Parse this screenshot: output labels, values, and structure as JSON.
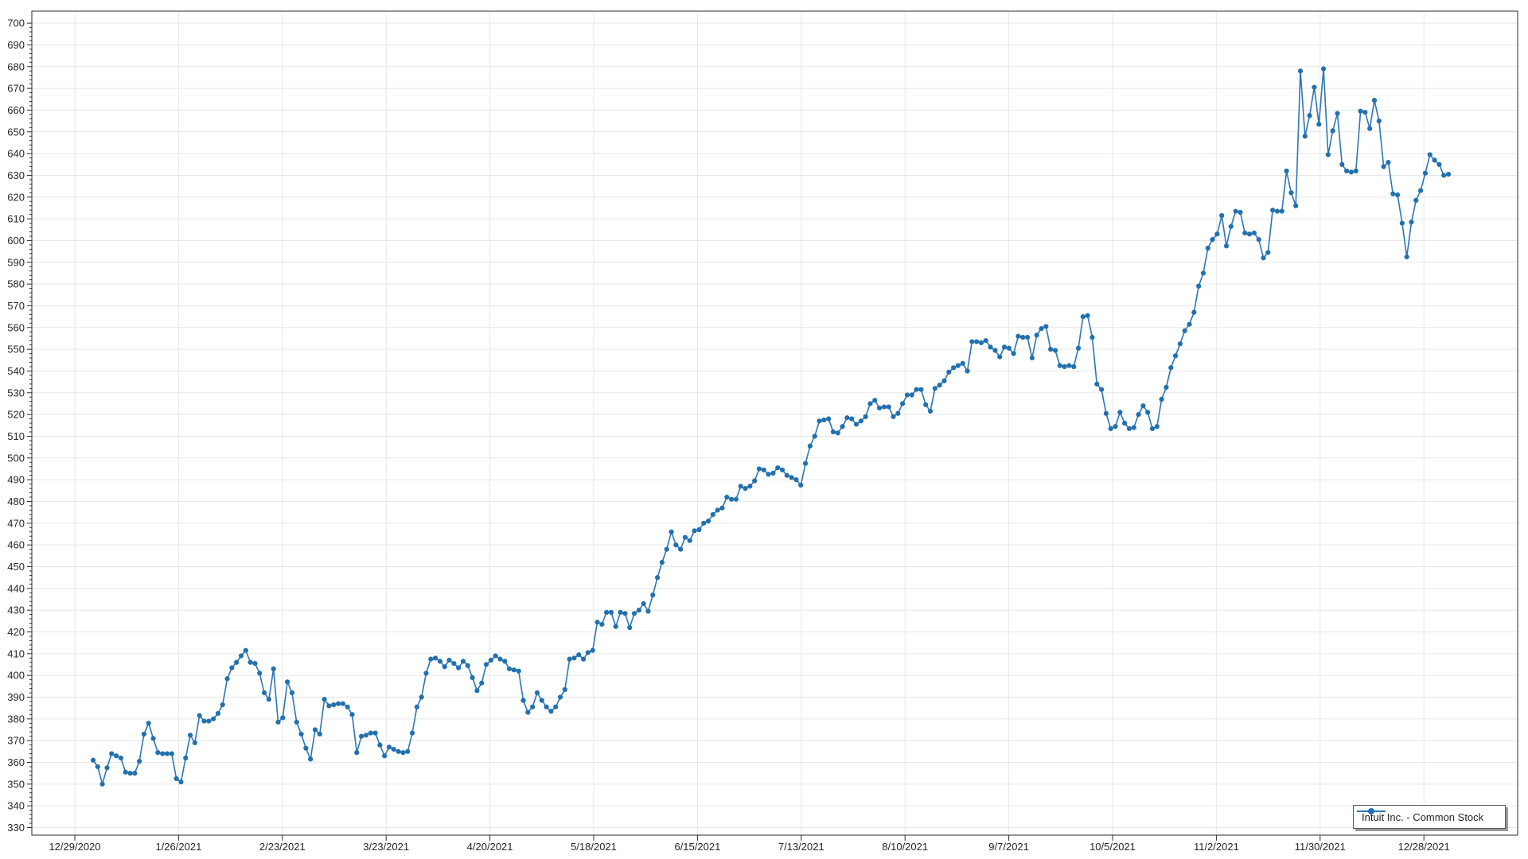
{
  "chart_data": {
    "type": "line",
    "title": "",
    "xlabel": "",
    "ylabel": "",
    "ylim": [
      330,
      700
    ],
    "y_tick_step": 10,
    "y_minor_tick_step": 2,
    "grid": true,
    "legend_position": "bottom-right",
    "x_tick_labels": [
      "12/29/2020",
      "1/26/2021",
      "2/23/2021",
      "3/23/2021",
      "4/20/2021",
      "5/18/2021",
      "6/15/2021",
      "7/13/2021",
      "8/10/2021",
      "9/7/2021",
      "10/5/2021",
      "11/2/2021",
      "11/30/2021",
      "12/28/2021"
    ],
    "series": [
      {
        "name": "Intuit Inc. - Common Stock",
        "values": [
          361,
          358,
          350,
          357.5,
          364,
          363,
          362,
          355.5,
          355,
          355,
          360.5,
          373,
          378,
          371,
          364.5,
          364,
          364,
          364,
          352.5,
          351,
          362,
          372.5,
          369,
          381.5,
          379,
          379,
          380,
          382.5,
          386.5,
          398.5,
          403.5,
          406,
          409,
          411.5,
          406,
          405.5,
          401,
          392,
          389,
          403,
          378.5,
          380.5,
          397,
          392,
          378.5,
          373,
          366.5,
          361.5,
          375,
          373,
          389,
          386,
          386.5,
          387,
          387,
          385.5,
          382,
          364.5,
          372,
          372.5,
          373.5,
          373.5,
          368,
          363,
          367,
          366,
          365,
          364.5,
          365,
          373.5,
          385.5,
          390,
          401,
          407.5,
          408,
          406.5,
          404,
          407,
          405.5,
          403.5,
          406.5,
          404.5,
          399,
          393,
          396.5,
          405,
          407,
          409,
          407.5,
          406.5,
          403,
          402.5,
          402,
          388.5,
          383,
          385.5,
          392,
          388.5,
          385.5,
          383.5,
          385.5,
          390,
          393.5,
          407.5,
          408,
          409.5,
          407.5,
          410.5,
          411.5,
          424.5,
          423.5,
          429,
          429,
          422.5,
          429,
          428.5,
          422,
          428.5,
          430,
          433,
          429.5,
          437,
          445,
          452,
          458,
          466,
          460,
          458,
          463.5,
          462,
          466.5,
          467,
          470,
          471,
          474,
          476,
          477,
          482,
          481,
          481,
          487,
          486,
          487,
          489.5,
          495,
          494.5,
          492.5,
          493,
          495.5,
          494.5,
          492,
          491,
          490,
          487.5,
          497.5,
          505.5,
          510,
          517,
          517.5,
          518,
          512,
          511.5,
          514.5,
          518.5,
          518,
          515.5,
          517,
          519,
          525,
          526.5,
          523,
          523.5,
          523.5,
          519,
          520.5,
          525,
          529,
          529,
          531.5,
          531.5,
          524.5,
          521.5,
          532,
          533.5,
          535.5,
          539.5,
          541.5,
          542.5,
          543.5,
          540,
          553.5,
          553.5,
          553,
          554,
          551,
          549.5,
          546.5,
          551,
          550.5,
          548,
          556,
          555.5,
          555.5,
          546,
          556.5,
          559.5,
          560.5,
          550,
          549.5,
          542.5,
          542,
          542.5,
          542,
          550.5,
          565,
          565.5,
          555.5,
          534,
          531.5,
          520.5,
          513.5,
          514.5,
          521,
          516,
          513.5,
          514,
          520,
          524,
          521,
          513.5,
          514.5,
          527,
          532.5,
          541.5,
          547,
          552.5,
          558.5,
          561.5,
          567,
          579,
          585,
          596.5,
          600.5,
          603,
          611.5,
          597.5,
          606.5,
          613.5,
          613,
          603.5,
          603,
          603.5,
          600.5,
          592,
          594.5,
          614,
          613.5,
          613.5,
          632,
          622,
          616,
          678,
          648,
          657.5,
          670.5,
          653.5,
          679,
          639.5,
          650.5,
          658.5,
          635,
          632,
          631.5,
          632,
          659.5,
          659,
          651.5,
          664.5,
          655,
          634,
          636,
          621.5,
          621,
          608,
          592.5,
          608.5,
          618.5,
          623,
          631,
          639.5,
          637,
          635,
          630,
          630.5
        ]
      }
    ]
  },
  "legend": {
    "label": "Intuit Inc. - Common Stock",
    "marker": "circle-on-line"
  },
  "colors": {
    "series_line": "#2b76b6",
    "series_marker": "#2270ae",
    "grid": "#e7e7e7",
    "axis": "#2b2b2b",
    "tick_label": "#262626",
    "background": "#ffffff",
    "legend_border": "#5a5a5a",
    "legend_shadow": "#9a9a9a"
  }
}
